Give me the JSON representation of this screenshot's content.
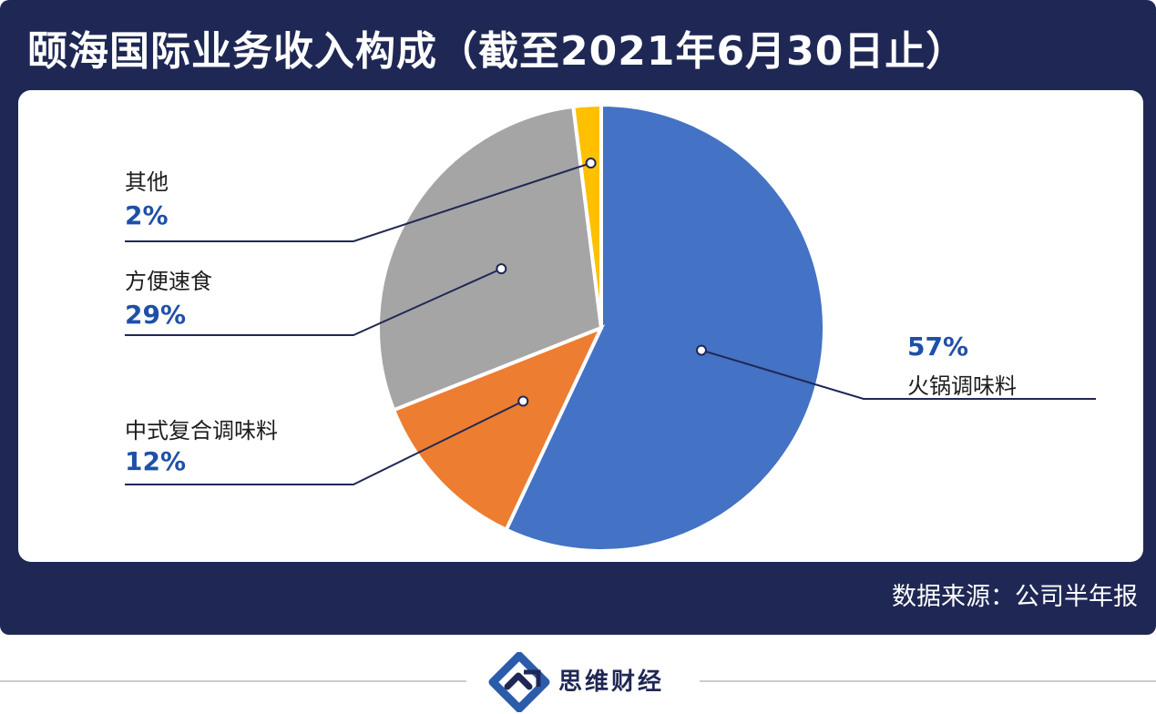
{
  "title": "颐海国际业务收入构成（截至2021年6月30日止）",
  "source": "数据来源：公司半年报",
  "brand": {
    "name": "思维财经",
    "logo_icon": "siwei-logo-icon"
  },
  "chart_data": {
    "type": "pie",
    "categories": [
      "火锅调味料",
      "中式复合调味料",
      "方便速食",
      "其他"
    ],
    "values": [
      57,
      12,
      29,
      2
    ],
    "labels": [
      "57%",
      "12%",
      "29%",
      "2%"
    ],
    "colors": [
      "#4472c4",
      "#ed7d31",
      "#a5a5a5",
      "#ffc000"
    ],
    "title": "颐海国际业务收入构成（截至2021年6月30日止）",
    "start_angle_deg": 0,
    "direction": "clockwise"
  }
}
